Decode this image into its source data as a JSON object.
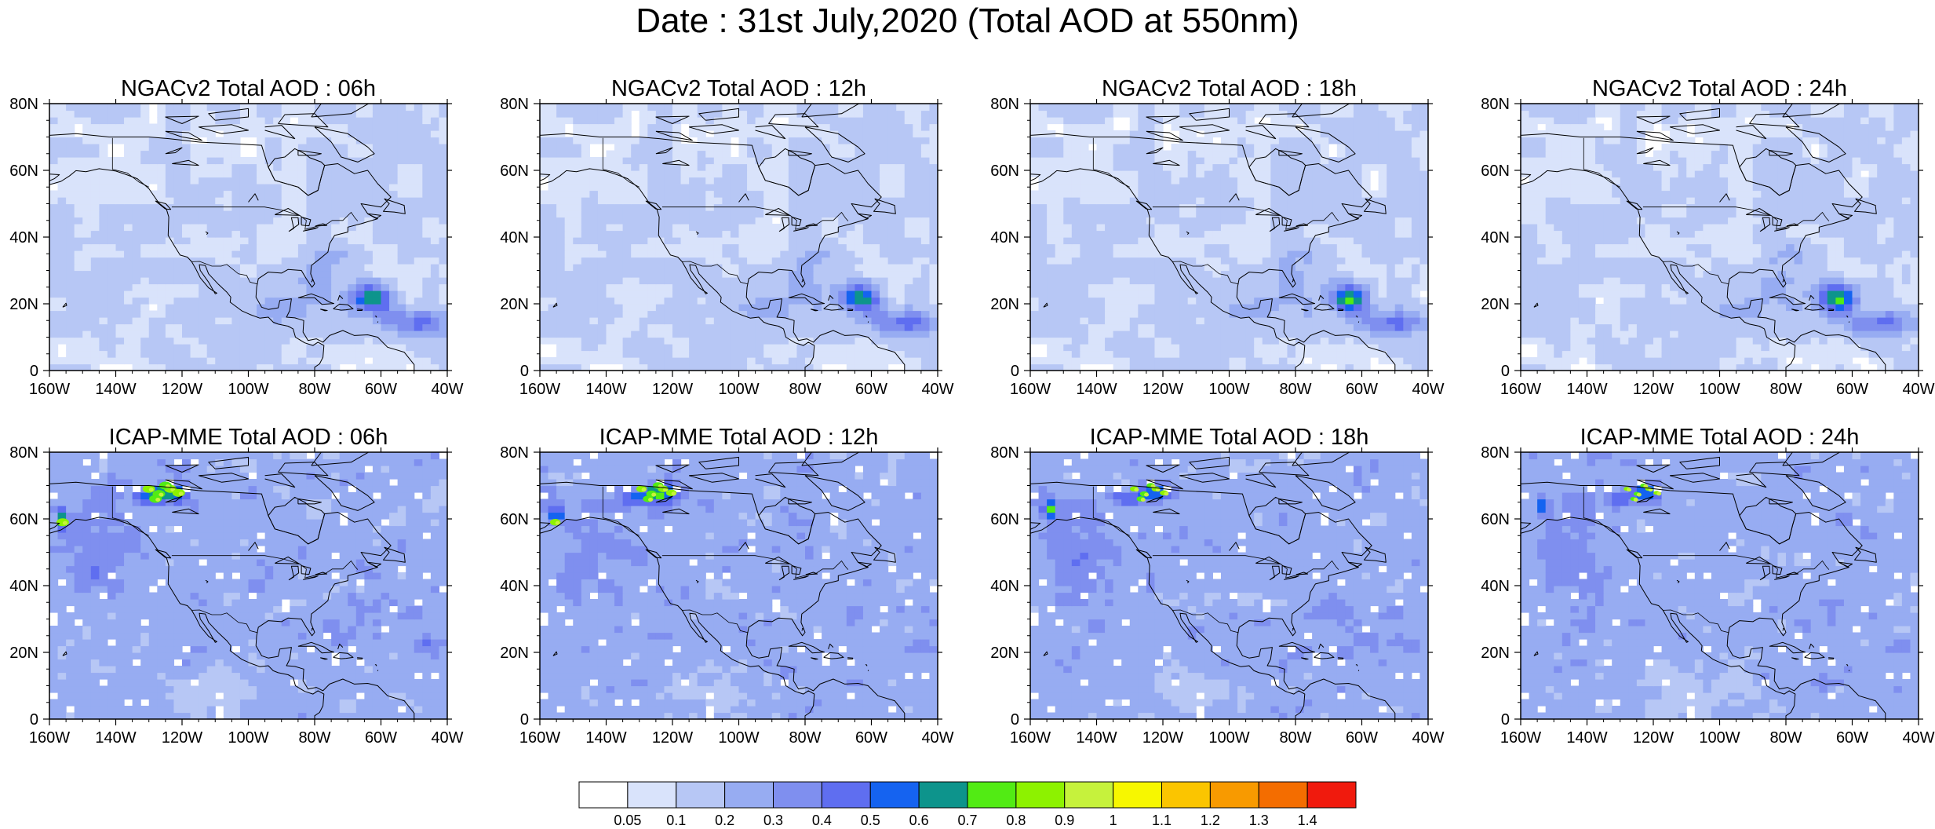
{
  "title": "Date : 31st July,2020 (Total AOD at 550nm)",
  "panels": [
    {
      "model": "NGACv2",
      "title": "NGACv2 Total AOD : 06h",
      "hour": 6
    },
    {
      "model": "NGACv2",
      "title": "NGACv2 Total AOD : 12h",
      "hour": 12
    },
    {
      "model": "NGACv2",
      "title": "NGACv2 Total AOD : 18h",
      "hour": 18
    },
    {
      "model": "NGACv2",
      "title": "NGACv2 Total AOD : 24h",
      "hour": 24
    },
    {
      "model": "ICAP-MME",
      "title": "ICAP-MME Total AOD : 06h",
      "hour": 6
    },
    {
      "model": "ICAP-MME",
      "title": "ICAP-MME Total AOD : 12h",
      "hour": 12
    },
    {
      "model": "ICAP-MME",
      "title": "ICAP-MME Total AOD : 18h",
      "hour": 18
    },
    {
      "model": "ICAP-MME",
      "title": "ICAP-MME Total AOD : 24h",
      "hour": 24
    }
  ],
  "map": {
    "lon_range": [
      -160,
      -40
    ],
    "lat_range": [
      0,
      80
    ],
    "lon_ticks": [
      "160W",
      "140W",
      "120W",
      "100W",
      "80W",
      "60W",
      "40W"
    ],
    "lon_tick_values": [
      -160,
      -140,
      -120,
      -100,
      -80,
      -60,
      -40
    ],
    "lat_ticks": [
      "0",
      "20N",
      "40N",
      "60N",
      "80N"
    ],
    "lat_tick_values": [
      0,
      20,
      40,
      60,
      80
    ]
  },
  "colorbar": {
    "labels": [
      "0.05",
      "0.1",
      "0.2",
      "0.3",
      "0.4",
      "0.5",
      "0.6",
      "0.7",
      "0.8",
      "0.9",
      "1",
      "1.1",
      "1.2",
      "1.3",
      "1.4"
    ],
    "colors": [
      "#ffffff",
      "#d9e3fb",
      "#b7c7f5",
      "#97acf2",
      "#7f8fef",
      "#5f6ef0",
      "#1563f0",
      "#0d948c",
      "#52eb14",
      "#8df200",
      "#c6f23c",
      "#f7f700",
      "#fbc500",
      "#f89a00",
      "#f46d00",
      "#f01a0d"
    ]
  },
  "features": {
    "ngac_plume": {
      "lon": -63,
      "lat": 22
    },
    "icap_fire": {
      "lon": -125,
      "lat": 68
    },
    "icap_swirl": {
      "lon": -45,
      "lat": 22
    }
  }
}
